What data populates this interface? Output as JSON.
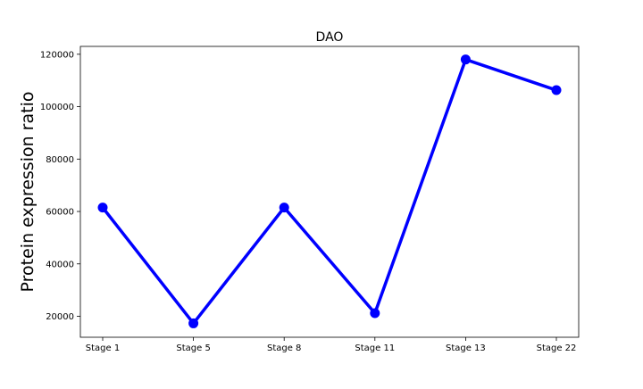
{
  "chart_data": {
    "type": "line",
    "title": "DAO",
    "xlabel": "",
    "ylabel": "Protein expression ratio",
    "categories": [
      "Stage 1",
      "Stage 5",
      "Stage 8",
      "Stage 11",
      "Stage 13",
      "Stage 22"
    ],
    "series": [
      {
        "values": [
          61500,
          17300,
          61500,
          21200,
          118000,
          106300
        ],
        "color": "#0000ff",
        "marker": "circle"
      }
    ],
    "yticks": [
      20000,
      40000,
      60000,
      80000,
      100000,
      120000
    ],
    "ytick_labels": [
      "20000",
      "40000",
      "60000",
      "80000",
      "100000",
      "120000"
    ],
    "ylim": [
      12000,
      123000
    ],
    "grid": false,
    "legend": false
  }
}
